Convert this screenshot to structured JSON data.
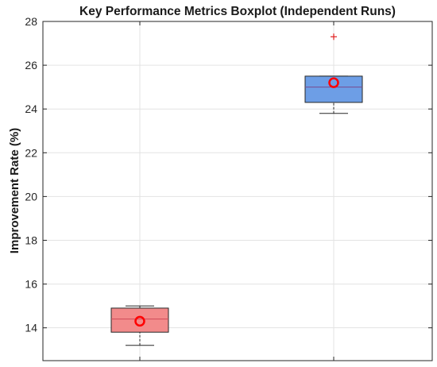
{
  "chart_data": {
    "type": "boxplot",
    "title": "Key Performance Metrics Boxplot (Independent Runs)",
    "xlabel": "",
    "ylabel": "Improvement Rate (%)",
    "ylim": [
      12.5,
      28
    ],
    "yticks": [
      14,
      16,
      18,
      20,
      22,
      24,
      26,
      28
    ],
    "grid": true,
    "legend": "none",
    "boxes": [
      {
        "whisker_low": 13.2,
        "q1": 13.8,
        "median": 14.4,
        "q3": 14.9,
        "whisker_high": 15.0,
        "mean": 14.3,
        "outliers": [],
        "fill_color": "#f28b8b",
        "median_color": "#cf4a57"
      },
      {
        "whisker_low": 23.8,
        "q1": 24.3,
        "median": 25.0,
        "q3": 25.5,
        "whisker_high": 25.5,
        "mean": 25.2,
        "outliers": [
          27.3
        ],
        "fill_color": "#6d9ee6",
        "median_color": "#7a4a8e"
      }
    ],
    "colors": {
      "mean_marker": "#ff0000",
      "outlier_marker": "#e02020",
      "whisker": "#262626",
      "box_edge": "#262626",
      "grid": "#e3e3e3",
      "axis": "#262626"
    }
  }
}
